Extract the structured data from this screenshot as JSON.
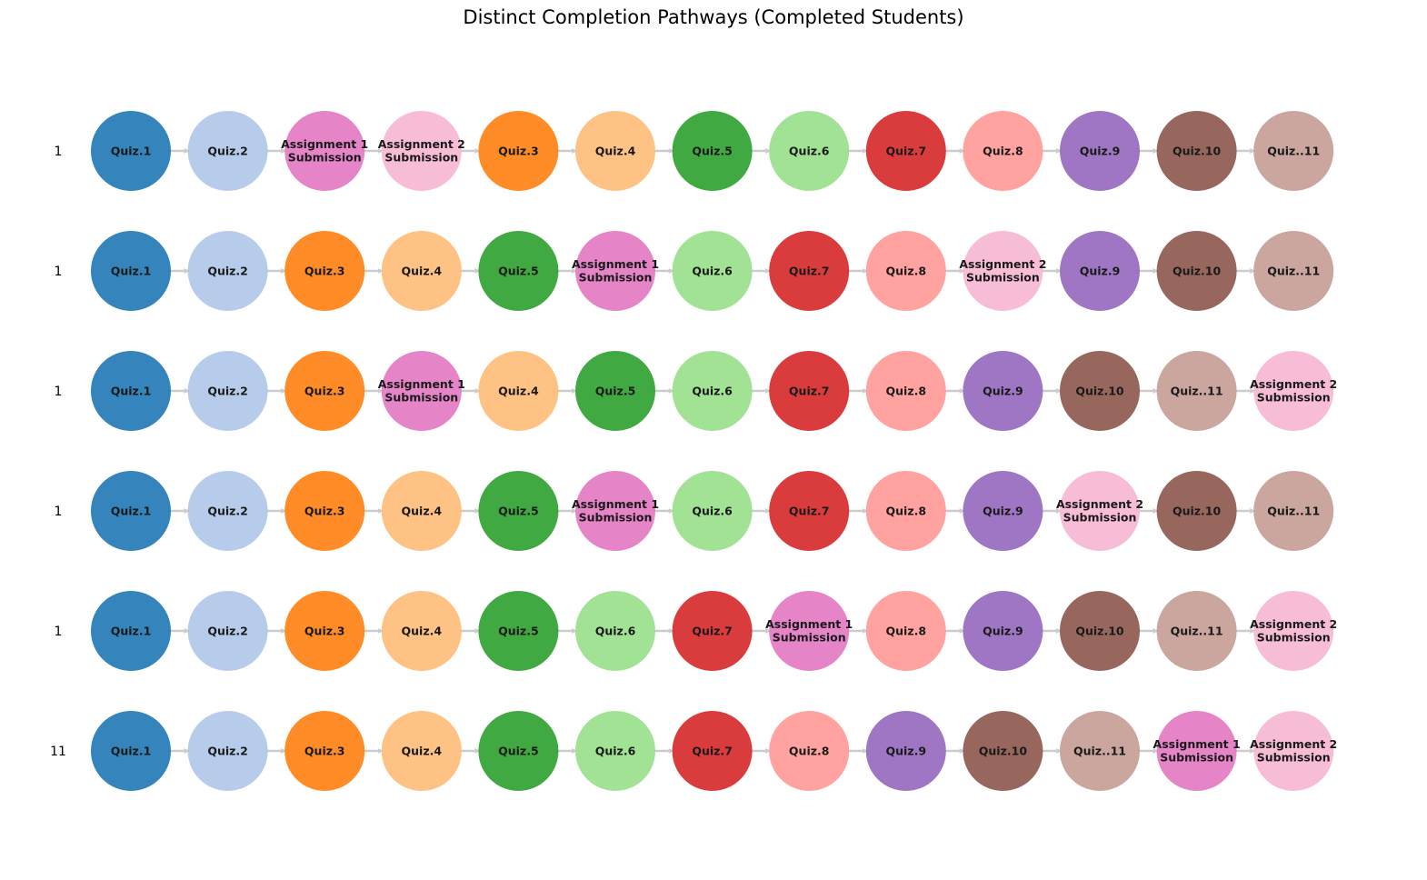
{
  "title": "Distinct Completion Pathways (Completed Students)",
  "colors": {
    "Quiz.1": "#1f77b4",
    "Quiz.2": "#aec7e8",
    "Quiz.3": "#ff7f0e",
    "Quiz.4": "#ffbb78",
    "Quiz.5": "#2ca02c",
    "Quiz.6": "#98df8a",
    "Quiz.7": "#d62728",
    "Quiz.8": "#ff9896",
    "Quiz.9": "#9467bd",
    "Quiz.10": "#8c564b",
    "Quiz..11": "#c49c94",
    "Assignment 1\nSubmission": "#e377c2",
    "Assignment 2\nSubmission": "#f7b6d2"
  },
  "arrow_color": "#cccccc",
  "pathways": [
    {
      "count": "1",
      "steps": [
        "Quiz.1",
        "Quiz.2",
        "Assignment 1\nSubmission",
        "Assignment 2\nSubmission",
        "Quiz.3",
        "Quiz.4",
        "Quiz.5",
        "Quiz.6",
        "Quiz.7",
        "Quiz.8",
        "Quiz.9",
        "Quiz.10",
        "Quiz..11"
      ]
    },
    {
      "count": "1",
      "steps": [
        "Quiz.1",
        "Quiz.2",
        "Quiz.3",
        "Quiz.4",
        "Quiz.5",
        "Assignment 1\nSubmission",
        "Quiz.6",
        "Quiz.7",
        "Quiz.8",
        "Assignment 2\nSubmission",
        "Quiz.9",
        "Quiz.10",
        "Quiz..11"
      ]
    },
    {
      "count": "1",
      "steps": [
        "Quiz.1",
        "Quiz.2",
        "Quiz.3",
        "Assignment 1\nSubmission",
        "Quiz.4",
        "Quiz.5",
        "Quiz.6",
        "Quiz.7",
        "Quiz.8",
        "Quiz.9",
        "Quiz.10",
        "Quiz..11",
        "Assignment 2\nSubmission"
      ]
    },
    {
      "count": "1",
      "steps": [
        "Quiz.1",
        "Quiz.2",
        "Quiz.3",
        "Quiz.4",
        "Quiz.5",
        "Assignment 1\nSubmission",
        "Quiz.6",
        "Quiz.7",
        "Quiz.8",
        "Quiz.9",
        "Assignment 2\nSubmission",
        "Quiz.10",
        "Quiz..11"
      ]
    },
    {
      "count": "1",
      "steps": [
        "Quiz.1",
        "Quiz.2",
        "Quiz.3",
        "Quiz.4",
        "Quiz.5",
        "Quiz.6",
        "Quiz.7",
        "Assignment 1\nSubmission",
        "Quiz.8",
        "Quiz.9",
        "Quiz.10",
        "Quiz..11",
        "Assignment 2\nSubmission"
      ]
    },
    {
      "count": "11",
      "steps": [
        "Quiz.1",
        "Quiz.2",
        "Quiz.3",
        "Quiz.4",
        "Quiz.5",
        "Quiz.6",
        "Quiz.7",
        "Quiz.8",
        "Quiz.9",
        "Quiz.10",
        "Quiz..11",
        "Assignment 1\nSubmission",
        "Assignment 2\nSubmission"
      ]
    }
  ]
}
